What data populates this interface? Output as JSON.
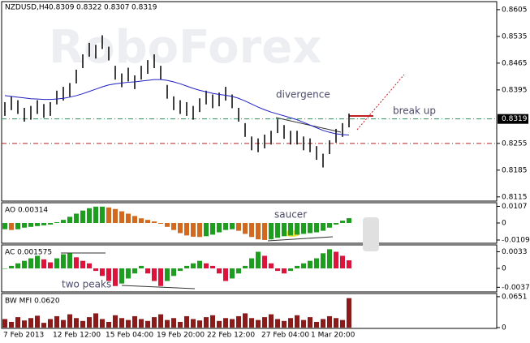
{
  "header": {
    "symbol": "NZDUSD,H4",
    "ohlc": [
      0.8309,
      0.8322,
      0.8307,
      0.8319
    ]
  },
  "watermark": "RoboForex",
  "annotations": {
    "divergence": "divergence",
    "break_up": "break up",
    "saucer": "saucer",
    "two_peaks": "two peaks"
  },
  "x_labels": [
    "7 Feb 2013",
    "12 Feb 12:00",
    "15 Feb 04:00",
    "19 Feb 20:00",
    "22 Feb 12:00",
    "27 Feb 04:00",
    "1 Mar 20:00"
  ],
  "price": {
    "ylim": [
      0.8104,
      0.8626
    ],
    "yticks": [
      0.8605,
      0.8535,
      0.8465,
      0.8395,
      0.8255,
      0.8185,
      0.8115
    ],
    "current_price": 0.8319,
    "levels": [
      {
        "value": 0.8319,
        "color": "#2e8b57"
      },
      {
        "value": 0.8255,
        "color": "#b22222"
      }
    ],
    "high": [
      0.8363,
      0.8378,
      0.8368,
      0.8348,
      0.8353,
      0.8368,
      0.8358,
      0.8363,
      0.8393,
      0.8403,
      0.8413,
      0.8448,
      0.8488,
      0.8518,
      0.8513,
      0.8538,
      0.8508,
      0.8458,
      0.8438,
      0.8453,
      0.8433,
      0.8458,
      0.8473,
      0.8488,
      0.8458,
      0.8408,
      0.8378,
      0.8368,
      0.8363,
      0.8353,
      0.8373,
      0.8393,
      0.8383,
      0.8388,
      0.8403,
      0.8383,
      0.8348,
      0.8308,
      0.8273,
      0.8268,
      0.8278,
      0.8288,
      0.8318,
      0.8303,
      0.8288,
      0.8288,
      0.8273,
      0.8268,
      0.8248,
      0.8228,
      0.8263,
      0.8293,
      0.8308,
      0.8333
    ],
    "low": [
      0.8327,
      0.8342,
      0.8332,
      0.8312,
      0.8317,
      0.8332,
      0.8322,
      0.8327,
      0.8357,
      0.8367,
      0.8377,
      0.8412,
      0.8452,
      0.8482,
      0.8477,
      0.8502,
      0.8472,
      0.8422,
      0.8402,
      0.8417,
      0.8397,
      0.8422,
      0.8437,
      0.8452,
      0.8422,
      0.8372,
      0.8342,
      0.8332,
      0.8327,
      0.8317,
      0.8337,
      0.8357,
      0.8347,
      0.8352,
      0.8367,
      0.8347,
      0.8312,
      0.8272,
      0.8237,
      0.8232,
      0.8242,
      0.8252,
      0.8282,
      0.8267,
      0.8252,
      0.8252,
      0.8237,
      0.8232,
      0.8212,
      0.8192,
      0.8227,
      0.8257,
      0.8272,
      0.8297
    ],
    "ma": {
      "color": "#2020c0",
      "values": [
        0.838,
        0.8378,
        0.8376,
        0.8374,
        0.8372,
        0.8371,
        0.837,
        0.837,
        0.8371,
        0.8373,
        0.8376,
        0.838,
        0.8385,
        0.8391,
        0.8397,
        0.8403,
        0.8408,
        0.8411,
        0.8413,
        0.8415,
        0.8416,
        0.8418,
        0.842,
        0.8422,
        0.8422,
        0.842,
        0.8416,
        0.8411,
        0.8405,
        0.8399,
        0.8394,
        0.839,
        0.8386,
        0.8383,
        0.8381,
        0.8378,
        0.8373,
        0.8366,
        0.8358,
        0.835,
        0.8343,
        0.8337,
        0.8332,
        0.8327,
        0.8322,
        0.8317,
        0.831,
        0.8303,
        0.8296,
        0.8289,
        0.8284,
        0.828,
        0.8278,
        0.8277
      ]
    }
  },
  "ao": {
    "label": "AO 0.00314",
    "ylim": [
      -0.0125,
      0.0125
    ],
    "yticks": [
      0.0107,
      0,
      -0.01093
    ],
    "up_color": "#1e9e1e",
    "down_color": "#d2691e",
    "values": [
      -0.004,
      -0.0045,
      -0.004,
      -0.003,
      -0.0025,
      -0.002,
      -0.0015,
      -0.001,
      0.0005,
      0.002,
      0.004,
      0.006,
      0.008,
      0.0095,
      0.0105,
      0.0105,
      0.01,
      0.009,
      0.0075,
      0.006,
      0.0045,
      0.003,
      0.002,
      0.001,
      -0.0005,
      -0.0025,
      -0.0045,
      -0.0065,
      -0.008,
      -0.0088,
      -0.009,
      -0.0085,
      -0.0075,
      -0.006,
      -0.0045,
      -0.004,
      -0.005,
      -0.007,
      -0.009,
      -0.0105,
      -0.0109,
      -0.0105,
      -0.0095,
      -0.0085,
      -0.008,
      -0.0075,
      -0.007,
      -0.0065,
      -0.006,
      -0.005,
      -0.003,
      -0.001,
      0.0015,
      0.0031
    ]
  },
  "ac": {
    "label": "AC 0.001575",
    "ylim": [
      -0.0045,
      0.0045
    ],
    "yticks": [
      0.0033,
      0,
      -0.00375
    ],
    "up_color": "#1e9e1e",
    "down_color": "#dc143c",
    "values": [
      0,
      0.0005,
      0.001,
      0.0015,
      0.002,
      0.0025,
      0.0018,
      0.0012,
      0.002,
      0.0028,
      0.003,
      0.0022,
      0.0015,
      0.001,
      -0.0005,
      -0.0015,
      -0.0025,
      -0.0035,
      -0.003,
      -0.002,
      -0.001,
      0.0005,
      -0.001,
      -0.0025,
      -0.0035,
      -0.0025,
      -0.0015,
      -0.0005,
      0.0005,
      0.001,
      0.0015,
      0.001,
      0.0005,
      -0.001,
      -0.0025,
      -0.002,
      -0.001,
      0.0005,
      0.002,
      0.0033,
      0.0025,
      0.001,
      -0.0005,
      -0.001,
      -0.0005,
      0.0005,
      0.001,
      0.0015,
      0.002,
      0.003,
      0.0038,
      0.0033,
      0.0025,
      0.0016
    ]
  },
  "mfi": {
    "label": "BW MFI 0.0620",
    "ylim": [
      0,
      0.07
    ],
    "yticks": [
      0.0651,
      0
    ],
    "color": "#8b1a1a",
    "values": [
      0.018,
      0.012,
      0.022,
      0.015,
      0.02,
      0.025,
      0.01,
      0.018,
      0.024,
      0.016,
      0.028,
      0.02,
      0.014,
      0.022,
      0.03,
      0.018,
      0.012,
      0.026,
      0.02,
      0.016,
      0.024,
      0.018,
      0.014,
      0.022,
      0.028,
      0.016,
      0.02,
      0.012,
      0.024,
      0.018,
      0.015,
      0.022,
      0.026,
      0.014,
      0.02,
      0.018,
      0.024,
      0.03,
      0.02,
      0.016,
      0.022,
      0.028,
      0.018,
      0.014,
      0.02,
      0.026,
      0.016,
      0.022,
      0.012,
      0.018,
      0.024,
      0.02,
      0.016,
      0.062
    ]
  }
}
